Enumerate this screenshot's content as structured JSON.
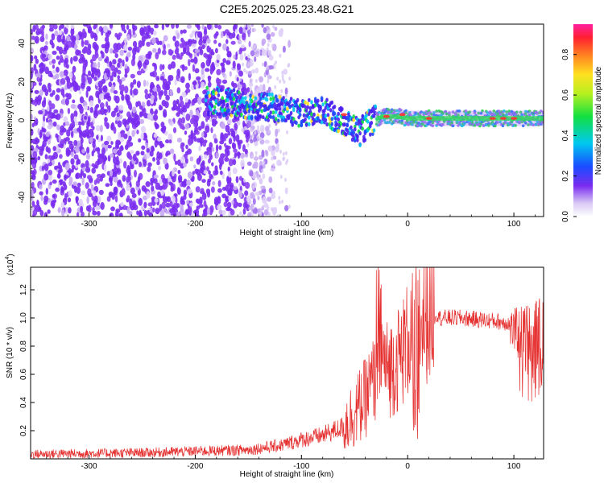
{
  "title": "C2E5.2025.025.23.48.G21",
  "colors": {
    "snr_line": "#e53030",
    "axis": "#000000",
    "background": "#ffffff"
  },
  "chart_data": [
    {
      "type": "heatmap",
      "xlabel": "Height of straight line (km)",
      "ylabel": "Frequency (Hz)",
      "xlim": [
        -355,
        128
      ],
      "ylim": [
        -50,
        50
      ],
      "xticks": [
        -300,
        -200,
        -100,
        0,
        100
      ],
      "yticks": [
        -40,
        -20,
        0,
        20,
        40
      ],
      "grid": false,
      "colorbar": {
        "label": "Normalized spectral amplitude",
        "ticks": [
          "0.0",
          "0.2",
          "0.4",
          "0.6",
          "0.8"
        ],
        "range": [
          0,
          0.95
        ]
      },
      "trend": {
        "x": [
          -180,
          -150,
          -120,
          -100,
          -80,
          -60,
          -45,
          -35,
          -25,
          -10,
          0,
          50,
          100,
          128
        ],
        "y": [
          10,
          8,
          6,
          3,
          5,
          -1,
          -6,
          -1,
          2,
          2,
          1,
          1,
          1,
          1
        ]
      }
    },
    {
      "type": "line",
      "xlabel": "Height of straight line (km)",
      "ylabel": "SNR (10 * v/v)",
      "y_multiplier": "(x10",
      "y_multiplier_exp": "4",
      "y_multiplier_close": ")",
      "xlim": [
        -355,
        128
      ],
      "ylim": [
        0,
        1.36
      ],
      "xticks": [
        -300,
        -200,
        -100,
        0,
        100
      ],
      "yticks": [
        "0.2",
        "0.4",
        "0.6",
        "0.8",
        "1.0",
        "1.2"
      ],
      "grid": false,
      "envelope": {
        "x": [
          -355,
          -250,
          -200,
          -150,
          -120,
          -100,
          -80,
          -60,
          -50,
          -40,
          -30,
          -25,
          -22,
          -20,
          -15,
          -10,
          -5,
          0,
          5,
          10,
          20,
          30,
          50,
          80,
          100,
          115,
          128
        ],
        "y": [
          0.03,
          0.04,
          0.05,
          0.06,
          0.09,
          0.13,
          0.16,
          0.22,
          0.3,
          0.4,
          0.55,
          0.8,
          0.62,
          0.6,
          0.62,
          0.66,
          0.72,
          0.8,
          0.85,
          0.92,
          0.98,
          1.03,
          1.03,
          1.01,
          0.99,
          0.97,
          0.96
        ]
      }
    }
  ]
}
